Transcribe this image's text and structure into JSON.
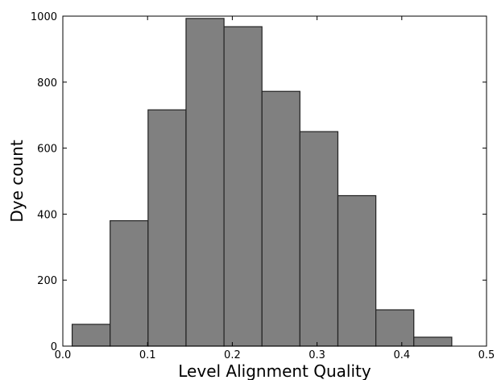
{
  "chart_data": {
    "type": "bar",
    "title": "",
    "xlabel": "Level Alignment Quality",
    "ylabel": "Dye count",
    "xlim": [
      0.0,
      0.5
    ],
    "ylim": [
      0,
      1000
    ],
    "x_ticks": [
      "0.0",
      "0.1",
      "0.2",
      "0.3",
      "0.4",
      "0.5"
    ],
    "y_ticks": [
      "0",
      "200",
      "400",
      "600",
      "800",
      "1000"
    ],
    "bin_edges": [
      0.011,
      0.0558,
      0.1006,
      0.1454,
      0.1902,
      0.235,
      0.2798,
      0.3246,
      0.3694,
      0.4142,
      0.459
    ],
    "values": [
      66,
      380,
      716,
      993,
      968,
      772,
      650,
      456,
      110,
      27
    ],
    "bar_color": "#808080",
    "edge_color": "#222222",
    "grid": false,
    "legend": "none"
  }
}
